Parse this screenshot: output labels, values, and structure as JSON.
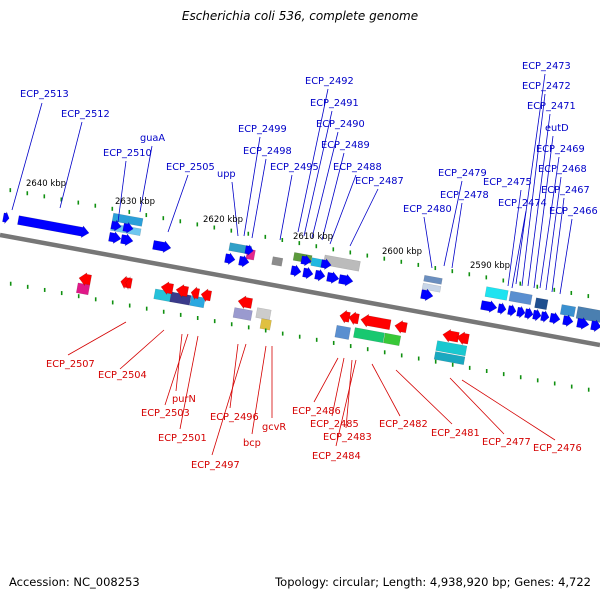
{
  "title": "Escherichia coli 536, complete genome",
  "footer": {
    "accession": "Accession: NC_008253",
    "topology": "Topology: circular; Length: 4,938,920 bp; Genes: 4,722"
  },
  "colors": {
    "upper_label": "#0000c8",
    "lower_label": "#d40000",
    "forward_gene": "#0000ff",
    "reverse_gene": "#ff0000",
    "backbone": "#777777",
    "tick": "#109010"
  },
  "scale_labels": [
    "2640 kbp",
    "2630 kbp",
    "2620 kbp",
    "2610 kbp",
    "2600 kbp",
    "2590 kbp"
  ],
  "upper_labels": [
    "ECP_2513",
    "ECP_2512",
    "guaA",
    "ECP_2510",
    "ECP_2505",
    "upp",
    "ECP_2499",
    "ECP_2498",
    "ECP_2495",
    "ECP_2492",
    "ECP_2491",
    "ECP_2490",
    "ECP_2489",
    "ECP_2488",
    "ECP_2487",
    "ECP_2480",
    "ECP_2479",
    "ECP_2478",
    "ECP_2475",
    "ECP_2474",
    "ECP_2473",
    "ECP_2472",
    "ECP_2471",
    "eutD",
    "ECP_2469",
    "ECP_2468",
    "ECP_2467",
    "ECP_2466"
  ],
  "lower_labels": [
    "ECP_2507",
    "ECP_2504",
    "purN",
    "ECP_2503",
    "ECP_2501",
    "ECP_2496",
    "ECP_2497",
    "bcp",
    "gcvR",
    "ECP_2486",
    "ECP_2485",
    "ECP_2483",
    "ECP_2484",
    "ECP_2482",
    "ECP_2481",
    "ECP_2477",
    "ECP_2476"
  ]
}
